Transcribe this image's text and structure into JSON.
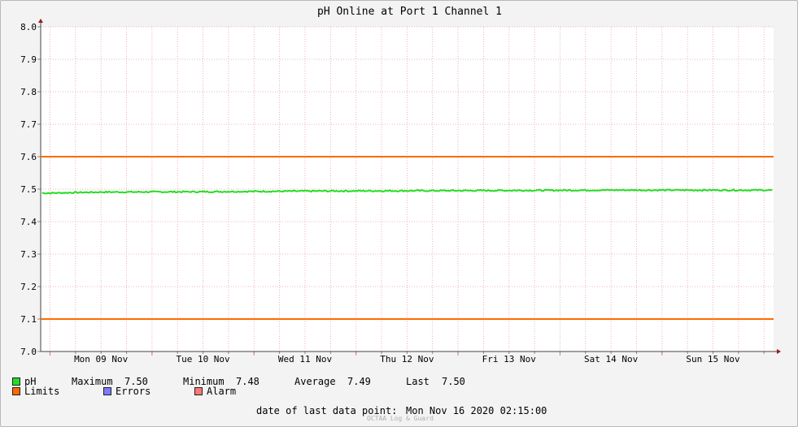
{
  "chart_data": {
    "type": "line",
    "title": "pH Online at Port 1 Channel 1",
    "xlabel": "",
    "ylabel": "",
    "ylim": [
      7.0,
      8.0
    ],
    "yticks": [
      "7.0",
      "7.1",
      "7.2",
      "7.3",
      "7.4",
      "7.5",
      "7.6",
      "7.7",
      "7.8",
      "7.9",
      "8.0"
    ],
    "xrange_days": [
      "Mon 09 Nov",
      "Sun 15 Nov"
    ],
    "day_labels": [
      "Mon 09 Nov",
      "Tue 10 Nov",
      "Wed 11 Nov",
      "Thu 12 Nov",
      "Fri 13 Nov",
      "Sat 14 Nov",
      "Sun 15 Nov"
    ],
    "grid": true,
    "series": [
      {
        "name": "pH",
        "color": "#22dd22",
        "x": [
          "Mon 09 Nov 00:00",
          "Mon 09 Nov 12:00",
          "Tue 10 Nov 12:00",
          "Wed 11 Nov 12:00",
          "Thu 12 Nov 12:00",
          "Fri 13 Nov 12:00",
          "Sat 14 Nov 12:00",
          "Sun 15 Nov 12:00",
          "Mon 16 Nov 02:15"
        ],
        "values": [
          7.488,
          7.491,
          7.492,
          7.494,
          7.495,
          7.496,
          7.497,
          7.497,
          7.497
        ]
      },
      {
        "name": "Limits",
        "color": "#ff6a00",
        "lines": [
          7.6,
          7.1
        ]
      }
    ],
    "legend_placement": "bottom"
  },
  "legend": {
    "ph_label": "pH",
    "max_label": "Maximum",
    "max_value": "7.50",
    "min_label": "Minimum",
    "min_value": "7.48",
    "avg_label": "Average",
    "avg_value": "7.49",
    "last_label": "Last",
    "last_value": "7.50",
    "limits_label": "Limits",
    "errors_label": "Errors",
    "alarm_label": "Alarm",
    "colors": {
      "ph": "#22dd22",
      "limits": "#ff6a00",
      "errors": "#7b7bff",
      "alarm": "#ff7777"
    }
  },
  "footer": {
    "last_point_label": "date of last data point:",
    "last_point_value": "Mon Nov 16 2020 02:15:00",
    "watermark": "OCTAA Log & Guard"
  }
}
